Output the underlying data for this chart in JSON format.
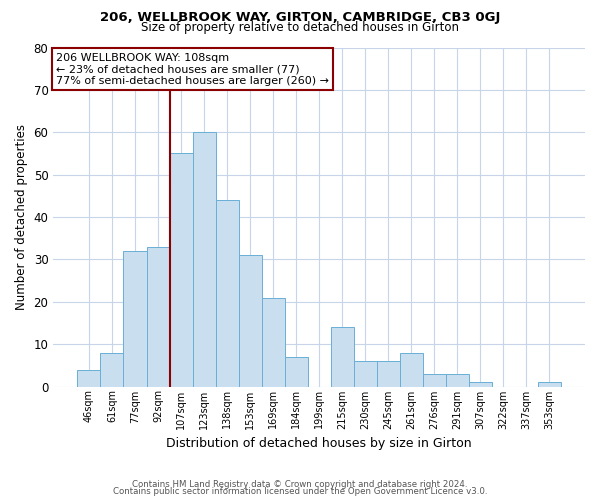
{
  "title1": "206, WELLBROOK WAY, GIRTON, CAMBRIDGE, CB3 0GJ",
  "title2": "Size of property relative to detached houses in Girton",
  "xlabel": "Distribution of detached houses by size in Girton",
  "ylabel": "Number of detached properties",
  "categories": [
    "46sqm",
    "61sqm",
    "77sqm",
    "92sqm",
    "107sqm",
    "123sqm",
    "138sqm",
    "153sqm",
    "169sqm",
    "184sqm",
    "199sqm",
    "215sqm",
    "230sqm",
    "245sqm",
    "261sqm",
    "276sqm",
    "291sqm",
    "307sqm",
    "322sqm",
    "337sqm",
    "353sqm"
  ],
  "values": [
    4,
    8,
    32,
    33,
    55,
    60,
    44,
    31,
    21,
    7,
    0,
    14,
    6,
    6,
    8,
    3,
    3,
    1,
    0,
    0,
    1
  ],
  "bar_color": "#c9dff0",
  "bar_edge_color": "#6aafd6",
  "marker_line_color": "#8b0000",
  "annotation_title": "206 WELLBROOK WAY: 108sqm",
  "annotation_line1": "← 23% of detached houses are smaller (77)",
  "annotation_line2": "77% of semi-detached houses are larger (260) →",
  "annotation_box_edge_color": "#8b0000",
  "ylim": [
    0,
    80
  ],
  "yticks": [
    0,
    10,
    20,
    30,
    40,
    50,
    60,
    70,
    80
  ],
  "footer1": "Contains HM Land Registry data © Crown copyright and database right 2024.",
  "footer2": "Contains public sector information licensed under the Open Government Licence v3.0.",
  "background_color": "#ffffff",
  "grid_color": "#c8d4e8"
}
